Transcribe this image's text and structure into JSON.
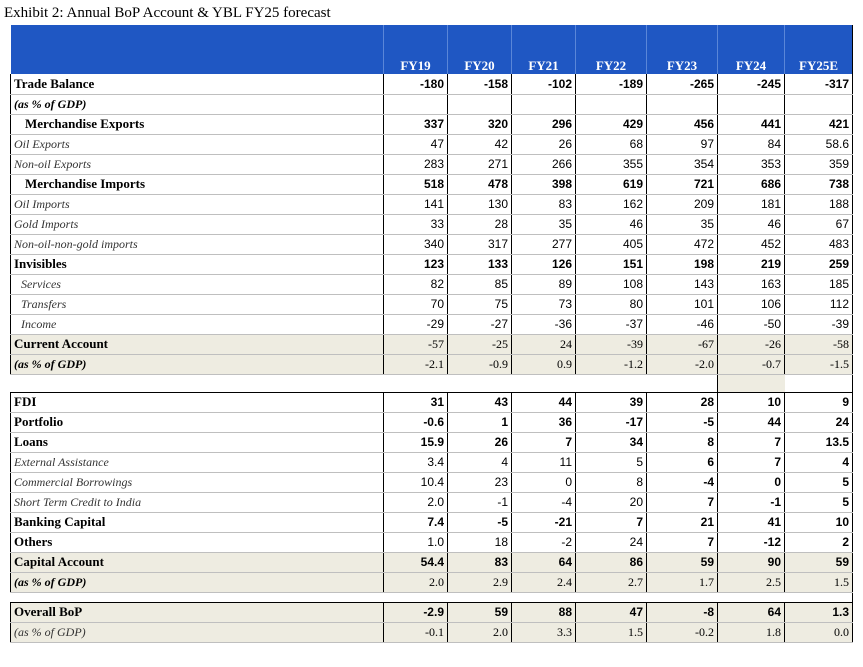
{
  "title": "Exhibit 2: Annual BoP Account & YBL FY25 forecast",
  "columns": [
    "FY19",
    "FY20",
    "FY21",
    "FY22",
    "FY23",
    "FY24",
    "FY25E"
  ],
  "rows": [
    {
      "label": "Trade Balance",
      "values": [
        "-180",
        "-158",
        "-102",
        "-189",
        "-265",
        "-245",
        "-317"
      ]
    },
    {
      "label": "(as % of GDP)",
      "values": [
        "",
        "",
        "",
        "",
        "",
        "",
        ""
      ]
    },
    {
      "label": "Merchandise Exports",
      "values": [
        "337",
        "320",
        "296",
        "429",
        "456",
        "441",
        "421"
      ]
    },
    {
      "label": "Oil Exports",
      "values": [
        "47",
        "42",
        "26",
        "68",
        "97",
        "84",
        "58.6"
      ]
    },
    {
      "label": "Non-oil Exports",
      "values": [
        "283",
        "271",
        "266",
        "355",
        "354",
        "353",
        "359"
      ]
    },
    {
      "label": "Merchandise Imports",
      "values": [
        "518",
        "478",
        "398",
        "619",
        "721",
        "686",
        "738"
      ]
    },
    {
      "label": "Oil Imports",
      "values": [
        "141",
        "130",
        "83",
        "162",
        "209",
        "181",
        "188"
      ]
    },
    {
      "label": "Gold Imports",
      "values": [
        "33",
        "28",
        "35",
        "46",
        "35",
        "46",
        "67"
      ]
    },
    {
      "label": "Non-oil-non-gold imports",
      "values": [
        "340",
        "317",
        "277",
        "405",
        "472",
        "452",
        "483"
      ]
    },
    {
      "label": "Invisibles",
      "values": [
        "123",
        "133",
        "126",
        "151",
        "198",
        "219",
        "259"
      ]
    },
    {
      "label": "Services",
      "values": [
        "82",
        "85",
        "89",
        "108",
        "143",
        "163",
        "185"
      ]
    },
    {
      "label": "Transfers",
      "values": [
        "70",
        "75",
        "73",
        "80",
        "101",
        "106",
        "112"
      ]
    },
    {
      "label": "Income",
      "values": [
        "-29",
        "-27",
        "-36",
        "-37",
        "-46",
        "-50",
        "-39"
      ]
    },
    {
      "label": "Current Account",
      "values": [
        "-57",
        "-25",
        "24",
        "-39",
        "-67",
        "-26",
        "-58"
      ]
    },
    {
      "label": "(as % of GDP)",
      "values": [
        "-2.1",
        "-0.9",
        "0.9",
        "-1.2",
        "-2.0",
        "-0.7",
        "-1.5"
      ]
    },
    {
      "label": "FDI",
      "values": [
        "31",
        "43",
        "44",
        "39",
        "28",
        "10",
        "9"
      ]
    },
    {
      "label": "Portfolio",
      "values": [
        "-0.6",
        "1",
        "36",
        "-17",
        "-5",
        "44",
        "24"
      ]
    },
    {
      "label": "Loans",
      "values": [
        "15.9",
        "26",
        "7",
        "34",
        "8",
        "7",
        "13.5"
      ]
    },
    {
      "label": "External Assistance",
      "values": [
        "3.4",
        "4",
        "11",
        "5",
        "6",
        "7",
        "4"
      ]
    },
    {
      "label": "Commercial Borrowings",
      "values": [
        "10.4",
        "23",
        "0",
        "8",
        "-4",
        "0",
        "5"
      ]
    },
    {
      "label": "Short Term Credit to India",
      "values": [
        "2.0",
        "-1",
        "-4",
        "20",
        "7",
        "-1",
        "5"
      ]
    },
    {
      "label": "Banking Capital",
      "values": [
        "7.4",
        "-5",
        "-21",
        "7",
        "21",
        "41",
        "10"
      ]
    },
    {
      "label": "Others",
      "values": [
        "1.0",
        "18",
        "-2",
        "24",
        "7",
        "-12",
        "2"
      ]
    },
    {
      "label": "Capital Account",
      "values": [
        "54.4",
        "83",
        "64",
        "86",
        "59",
        "90",
        "59"
      ]
    },
    {
      "label": "(as % of GDP)",
      "values": [
        "2.0",
        "2.9",
        "2.4",
        "2.7",
        "1.7",
        "2.5",
        "1.5"
      ]
    },
    {
      "label": "Overall BoP",
      "values": [
        "-2.9",
        "59",
        "88",
        "47",
        "-8",
        "64",
        "1.3"
      ]
    },
    {
      "label": "(as % of GDP)",
      "values": [
        "-0.1",
        "2.0",
        "3.3",
        "1.5",
        "-0.2",
        "1.8",
        "0.0"
      ]
    }
  ]
}
